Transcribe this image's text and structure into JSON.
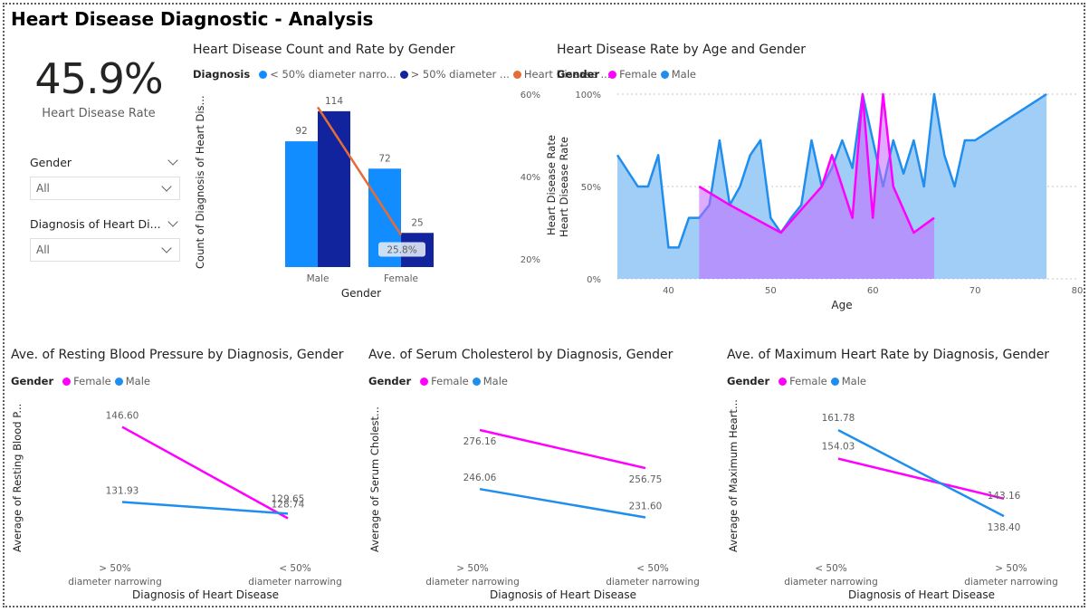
{
  "page": {
    "title": "Heart Disease Diagnostic - Analysis"
  },
  "kpi": {
    "value": "45.9%",
    "label": "Heart Disease Rate"
  },
  "slicers": [
    {
      "label": "Gender",
      "value": "All"
    },
    {
      "label": "Diagnosis of Heart Di...",
      "value": "All"
    }
  ],
  "colors": {
    "light_blue": "#118dff",
    "dark_blue": "#12239e",
    "orange": "#e66c37",
    "female": "#ff00ff",
    "male": "#1f8eed"
  },
  "chart_data": [
    {
      "type": "bar",
      "title": "Heart Disease Count and Rate by Gender",
      "legend_title": "Diagnosis",
      "legend_items": [
        "< 50% diameter narro...",
        "> 50% diameter ...",
        "Heart Disease ..."
      ],
      "categories": [
        "Male",
        "Female"
      ],
      "series": [
        {
          "name": "< 50% diameter narrowing",
          "values": [
            92,
            72
          ]
        },
        {
          "name": "> 50% diameter narrowing",
          "values": [
            114,
            25
          ]
        }
      ],
      "line_series": {
        "name": "Heart Disease Rate",
        "values": [
          55.3,
          25.8
        ]
      },
      "line_label": "25.8%",
      "xlabel": "Gender",
      "ylabel": "Count of Diagnosis of Heart Dis...",
      "y2label": "Heart Disease Rate",
      "y2ticks": [
        "60%",
        "40%",
        "20%"
      ],
      "y2lim": [
        18,
        60
      ],
      "ylim": [
        0,
        120
      ]
    },
    {
      "type": "area",
      "title": "Heart Disease Rate by Age and Gender",
      "legend_title": "Gender",
      "legend_items": [
        "Female",
        "Male"
      ],
      "xlabel": "Age",
      "ylabel": "Heart Disease Rate",
      "xticks": [
        "40",
        "50",
        "60",
        "70",
        "80"
      ],
      "yticks": [
        "100%",
        "50%",
        "0%"
      ],
      "xlim": [
        35,
        80
      ],
      "ylim": [
        0,
        100
      ],
      "series": [
        {
          "name": "Male",
          "x": [
            35,
            37,
            38,
            39,
            40,
            41,
            42,
            43,
            44,
            45,
            46,
            47,
            48,
            49,
            50,
            51,
            52,
            53,
            54,
            55,
            56,
            57,
            58,
            59,
            60,
            61,
            62,
            63,
            64,
            65,
            66,
            67,
            68,
            69,
            70,
            77
          ],
          "y": [
            67,
            50,
            50,
            67,
            17,
            17,
            33,
            33,
            40,
            75,
            40,
            50,
            67,
            75,
            33,
            25,
            33,
            40,
            75,
            50,
            60,
            75,
            60,
            100,
            75,
            50,
            75,
            57,
            75,
            50,
            100,
            67,
            50,
            75,
            75,
            100
          ]
        },
        {
          "name": "Female",
          "x": [
            43,
            46,
            51,
            55,
            56,
            57,
            58,
            59,
            60,
            61,
            62,
            64,
            66
          ],
          "y": [
            50,
            40,
            25,
            50,
            67,
            50,
            33,
            100,
            33,
            100,
            50,
            25,
            33
          ]
        }
      ]
    },
    {
      "type": "line",
      "title": "Ave. of Resting Blood Pressure by Diagnosis, Gender",
      "legend_title": "Gender",
      "legend_items": [
        "Female",
        "Male"
      ],
      "categories": [
        "> 50% diameter narrowing",
        "< 50% diameter narrowing"
      ],
      "series": [
        {
          "name": "Female",
          "values": [
            146.6,
            128.74
          ],
          "labels": [
            "146.60",
            "128.74"
          ]
        },
        {
          "name": "Male",
          "values": [
            131.93,
            129.65
          ],
          "labels": [
            "131.93",
            "129.65"
          ]
        }
      ],
      "xlabel": "Diagnosis of Heart Disease",
      "ylabel": "Average of Resting Blood P...",
      "ylim": [
        126,
        149
      ]
    },
    {
      "type": "line",
      "title": "Ave. of Serum Cholesterol by Diagnosis, Gender",
      "legend_title": "Gender",
      "legend_items": [
        "Female",
        "Male"
      ],
      "categories": [
        "> 50% diameter narrowing",
        "< 50% diameter narrowing"
      ],
      "series": [
        {
          "name": "Female",
          "values": [
            276.16,
            256.75
          ],
          "labels": [
            "276.16",
            "256.75"
          ]
        },
        {
          "name": "Male",
          "values": [
            246.06,
            231.6
          ],
          "labels": [
            "246.06",
            "231.60"
          ]
        }
      ],
      "xlabel": "Diagnosis of Heart Disease",
      "ylabel": "Average of Serum Cholest...",
      "ylim": [
        224,
        284
      ]
    },
    {
      "type": "line",
      "title": "Ave. of Maximum Heart Rate by Diagnosis, Gender",
      "legend_title": "Gender",
      "legend_items": [
        "Female",
        "Male"
      ],
      "categories": [
        "< 50% diameter narrowing",
        "> 50% diameter narrowing"
      ],
      "series": [
        {
          "name": "Female",
          "values": [
            154.03,
            143.16
          ],
          "labels": [
            "154.03",
            "143.16"
          ]
        },
        {
          "name": "Male",
          "values": [
            161.78,
            138.4
          ],
          "labels": [
            "161.78",
            "138.40"
          ]
        }
      ],
      "xlabel": "Diagnosis of Heart Disease",
      "ylabel": "Average of Maximum Heart...",
      "ylim": [
        134,
        166
      ]
    }
  ]
}
